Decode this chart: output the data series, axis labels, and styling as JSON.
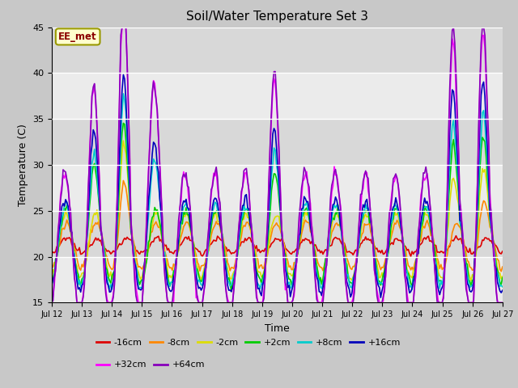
{
  "title": "Soil/Water Temperature Set 3",
  "xlabel": "Time",
  "ylabel": "Temperature (C)",
  "ylim": [
    15,
    45
  ],
  "annotation": "EE_met",
  "fig_facecolor": "#c8c8c8",
  "ax_facecolor": "#e0e0e0",
  "x_tick_labels": [
    "Jul 12",
    "Jul 13",
    "Jul 14",
    "Jul 15",
    "Jul 16",
    "Jul 17",
    "Jul 18",
    "Jul 19",
    "Jul 20",
    "Jul 21",
    "Jul 22",
    "Jul 23",
    "Jul 24",
    "Jul 25",
    "Jul 26",
    "Jul 27"
  ],
  "series_colors": {
    "-16cm": "#dd0000",
    "-8cm": "#ff8800",
    "-2cm": "#dddd00",
    "+2cm": "#00cc00",
    "+8cm": "#00cccc",
    "+16cm": "#0000bb",
    "+32cm": "#ff00ff",
    "+64cm": "#8800bb"
  },
  "series_order": [
    "-16cm",
    "-8cm",
    "-2cm",
    "+2cm",
    "+8cm",
    "+16cm",
    "+32cm",
    "+64cm"
  ],
  "legend_row1": [
    "-16cm",
    "-8cm",
    "-2cm",
    "+2cm",
    "+8cm",
    "+16cm"
  ],
  "legend_row2": [
    "+32cm",
    "+64cm"
  ]
}
